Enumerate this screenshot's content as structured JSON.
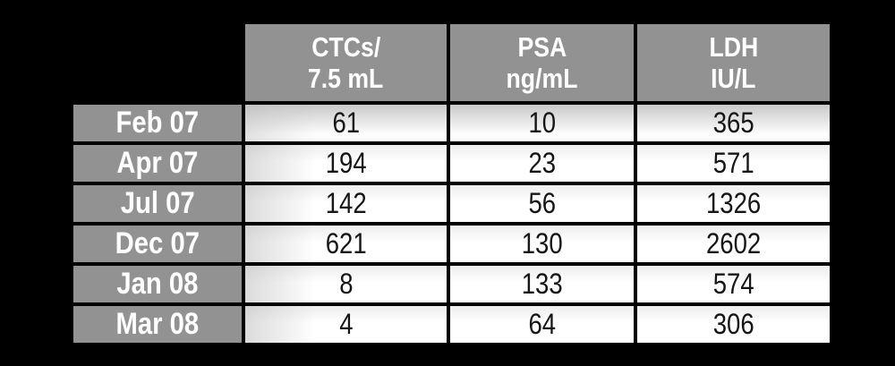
{
  "table": {
    "headers": [
      {
        "line1": "CTCs/",
        "line2": "7.5 mL"
      },
      {
        "line1": "PSA",
        "line2": "ng/mL"
      },
      {
        "line1": "LDH",
        "line2": "IU/L"
      }
    ],
    "rows": [
      {
        "label": "Feb 07",
        "values": [
          "61",
          "10",
          "365"
        ]
      },
      {
        "label": "Apr 07",
        "values": [
          "194",
          "23",
          "571"
        ]
      },
      {
        "label": "Jul 07",
        "values": [
          "142",
          "56",
          "1326"
        ]
      },
      {
        "label": "Dec 07",
        "values": [
          "621",
          "130",
          "2602"
        ]
      },
      {
        "label": "Jan 08",
        "values": [
          "8",
          "133",
          "574"
        ]
      },
      {
        "label": "Mar 08",
        "values": [
          "4",
          "64",
          "306"
        ]
      }
    ]
  },
  "colors": {
    "background": "#000000",
    "header_gray": "#929292",
    "header_text": "#ffffff",
    "data_text": "#161616",
    "grid_line": "#000000"
  },
  "chart_data": {
    "type": "table",
    "columns": [
      "CTCs/7.5 mL",
      "PSA ng/mL",
      "LDH IU/L"
    ],
    "row_labels": [
      "Feb 07",
      "Apr 07",
      "Jul 07",
      "Dec 07",
      "Jan 08",
      "Mar 08"
    ],
    "rows": [
      [
        61,
        10,
        365
      ],
      [
        194,
        23,
        571
      ],
      [
        142,
        56,
        1326
      ],
      [
        621,
        130,
        2602
      ],
      [
        8,
        133,
        574
      ],
      [
        4,
        64,
        306
      ]
    ]
  }
}
